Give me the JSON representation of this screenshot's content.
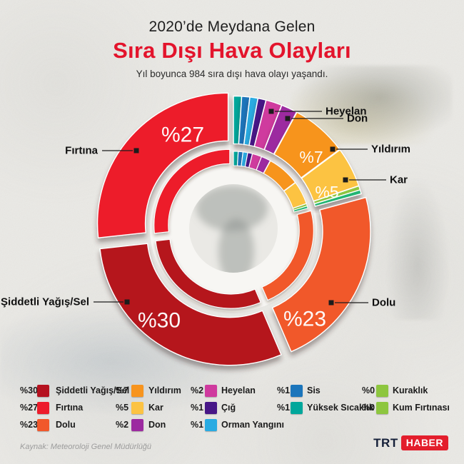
{
  "header": {
    "pretitle": "2020’de Meydana Gelen",
    "title": "Sıra Dışı Hava Olayları",
    "subtitle": "Yıl boyunca 984 sıra dışı hava olayı yaşandı."
  },
  "chart_data": {
    "type": "pie",
    "variant": "double-ring-donut",
    "unit": "percent",
    "start_angle_deg": 0,
    "direction": "clockwise",
    "segments": [
      {
        "key": "yuksek-sicaklik",
        "label": "Yüksek Sıcaklık",
        "pct": 1,
        "arc": 1,
        "color": "#00a79b"
      },
      {
        "key": "sis",
        "label": "Sis",
        "pct": 1,
        "arc": 1,
        "color": "#1b75bb"
      },
      {
        "key": "orman-yangini",
        "label": "Orman Yangını",
        "pct": 1,
        "arc": 1,
        "color": "#29abe2"
      },
      {
        "key": "cig",
        "label": "Çığ",
        "pct": 1,
        "arc": 1,
        "color": "#471787"
      },
      {
        "key": "heyelan",
        "label": "Heyelan",
        "pct": 2,
        "arc": 2,
        "color": "#cf3a9e",
        "callout": true
      },
      {
        "key": "don",
        "label": "Don",
        "pct": 2,
        "arc": 2,
        "color": "#9c2aa0",
        "callout": true
      },
      {
        "key": "yildirim",
        "label": "Yıldırım",
        "pct": 7,
        "arc": 7,
        "color": "#f7941e",
        "callout": true,
        "pct_label": "%7"
      },
      {
        "key": "kar",
        "label": "Kar",
        "pct": 5,
        "arc": 5,
        "color": "#fcc343",
        "callout": true,
        "pct_label": "%5"
      },
      {
        "key": "kuraklik",
        "label": "Kuraklık",
        "pct": 0,
        "arc": 0.5,
        "color": "#8dc63f"
      },
      {
        "key": "kum-firtinasi",
        "label": "Kum Fırtınası",
        "pct": 0,
        "arc": 0.5,
        "color": "#22b573"
      },
      {
        "key": "dolu",
        "label": "Dolu",
        "pct": 23,
        "arc": 23,
        "color": "#f1582b",
        "callout": true,
        "pct_label": "%23"
      },
      {
        "key": "siddetli-yagis-sel",
        "label": "Şiddetli Yağış/Sel",
        "pct": 30,
        "arc": 30,
        "color": "#b5121f",
        "callout": true,
        "pct_label": "%30"
      },
      {
        "key": "firtina",
        "label": "Fırtına",
        "pct": 27,
        "arc": 27,
        "color": "#ed1c2b",
        "callout": true,
        "pct_label": "%27"
      }
    ]
  },
  "legend": {
    "columns": [
      [
        {
          "key": "siddetli-yagis-sel",
          "pct": "%30",
          "label": "Şiddetli Yağış/Sel",
          "color": "#b5121f"
        },
        {
          "key": "firtina",
          "pct": "%27",
          "label": "Fırtına",
          "color": "#ed1c2b"
        },
        {
          "key": "dolu",
          "pct": "%23",
          "label": "Dolu",
          "color": "#f1582b"
        }
      ],
      [
        {
          "key": "yildirim",
          "pct": "%7",
          "label": "Yıldırım",
          "color": "#f7941e"
        },
        {
          "key": "kar",
          "pct": "%5",
          "label": "Kar",
          "color": "#fcc343"
        },
        {
          "key": "don",
          "pct": "%2",
          "label": "Don",
          "color": "#9c2aa0"
        }
      ],
      [
        {
          "key": "heyelan",
          "pct": "%2",
          "label": "Heyelan",
          "color": "#cf3a9e"
        },
        {
          "key": "cig",
          "pct": "%1",
          "label": "Çığ",
          "color": "#471787"
        },
        {
          "key": "orman-yangini",
          "pct": "%1",
          "label": "Orman Yangını",
          "color": "#29abe2"
        }
      ],
      [
        {
          "key": "sis",
          "pct": "%1",
          "label": "Sis",
          "color": "#1b75bb"
        },
        {
          "key": "yuksek-sicaklik",
          "pct": "%1",
          "label": "Yüksek Sıcaklık",
          "color": "#00a79b"
        }
      ],
      [
        {
          "key": "kuraklik",
          "pct": "%0",
          "label": "Kuraklık",
          "color": "#8dc63f"
        },
        {
          "key": "kum-firtinasi",
          "pct": "%0",
          "label": "Kum Fırtınası",
          "color": "#8dc63f"
        }
      ]
    ]
  },
  "footer": {
    "source": "Kaynak: Meteoroloji Genel Müdürlüğü",
    "logo": {
      "trt": "TRT",
      "haber": "HABER"
    }
  },
  "colors": {
    "accent_red": "#e3142c",
    "background": "#eae9e5",
    "ring_white": "#f7f6f3"
  }
}
